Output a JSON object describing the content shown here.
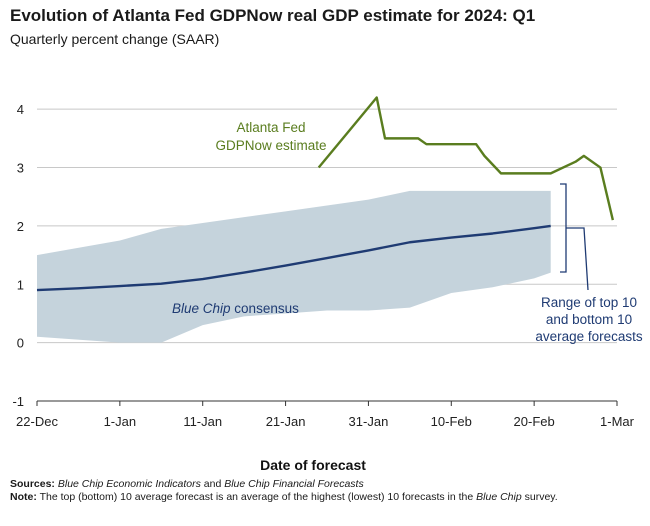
{
  "header": {
    "title": "Evolution of Atlanta Fed GDPNow real GDP estimate for 2024: Q1",
    "subtitle": "Quarterly percent change (SAAR)"
  },
  "chart_data": {
    "type": "line",
    "title": "Evolution of Atlanta Fed GDPNow real GDP estimate for 2024: Q1",
    "subtitle": "Quarterly percent change (SAAR)",
    "xlabel": "Date of forecast",
    "ylabel": "",
    "ylim": [
      -1,
      4.5
    ],
    "xlim_days_since_22dec": [
      0,
      70
    ],
    "x_tick_labels": [
      "22-Dec",
      "1-Jan",
      "11-Jan",
      "21-Jan",
      "31-Jan",
      "10-Feb",
      "20-Feb",
      "1-Mar"
    ],
    "x_tick_days": [
      0,
      10,
      20,
      30,
      40,
      50,
      60,
      70
    ],
    "y_ticks": [
      -1,
      0,
      1,
      2,
      3,
      4
    ],
    "series": [
      {
        "name": "Atlanta Fed GDPNow estimate",
        "color": "#5a7d1f",
        "x": [
          34,
          41,
          42,
          45,
          46,
          47,
          50,
          53,
          54,
          56,
          58,
          61,
          62,
          65,
          66,
          68,
          69.5
        ],
        "y": [
          3.0,
          4.2,
          3.5,
          3.5,
          3.5,
          3.4,
          3.4,
          3.4,
          3.2,
          2.9,
          2.9,
          2.9,
          2.9,
          3.1,
          3.2,
          3.0,
          2.1
        ]
      },
      {
        "name": "Blue Chip consensus",
        "color": "#1f3b73",
        "x": [
          0,
          5,
          10,
          15,
          20,
          25,
          30,
          35,
          40,
          45,
          50,
          55,
          60,
          62
        ],
        "y": [
          0.9,
          0.93,
          0.97,
          1.01,
          1.09,
          1.2,
          1.32,
          1.45,
          1.58,
          1.72,
          1.8,
          1.87,
          1.96,
          2.0
        ]
      },
      {
        "name": "Range of top 10 and bottom 10 average forecasts",
        "color": "#c5d3dc",
        "x": [
          0,
          10,
          15,
          20,
          25,
          30,
          35,
          40,
          45,
          50,
          55,
          60,
          62
        ],
        "upper": [
          1.5,
          1.75,
          1.95,
          2.05,
          2.15,
          2.25,
          2.35,
          2.45,
          2.6,
          2.6,
          2.6,
          2.6,
          2.6
        ],
        "lower": [
          0.1,
          0.0,
          0.0,
          0.3,
          0.45,
          0.5,
          0.55,
          0.55,
          0.6,
          0.85,
          0.95,
          1.1,
          1.2
        ]
      }
    ],
    "annotations": {
      "gdpnow_label": [
        "Atlanta Fed",
        "GDPNow estimate"
      ],
      "bluechip_label_italic": "Blue Chip",
      "bluechip_label_rest": " consensus",
      "range_label": [
        "Range of top 10",
        "and bottom 10",
        "average forecasts"
      ]
    }
  },
  "footer": {
    "sources_label": "Sources:",
    "sources_part1": "Blue Chip Economic Indicators",
    "sources_part2": " and ",
    "sources_part3": "Blue Chip Financial Forecasts",
    "note_label": "Note:",
    "note_text": " The top (bottom) 10 average forecast is an average of the highest (lowest) 10 forecasts in the ",
    "note_italic": "Blue Chip",
    "note_end": " survey."
  }
}
